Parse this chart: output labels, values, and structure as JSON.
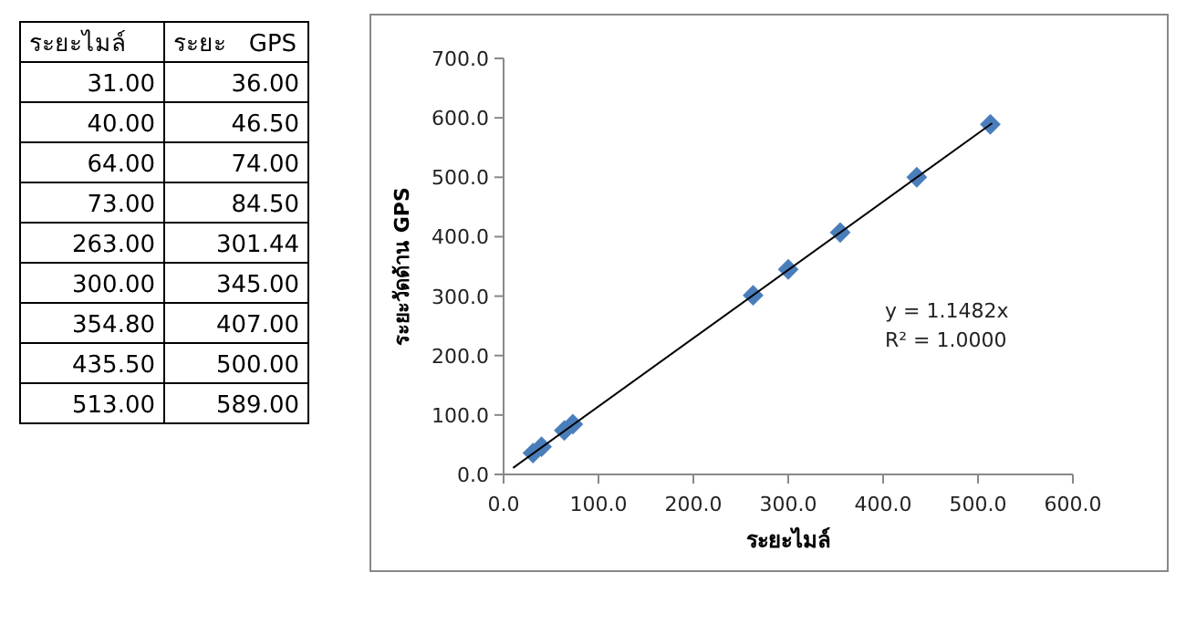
{
  "chart_data": [
    {
      "type": "other",
      "annotations": [
        "ระยะไมล์",
        "ระยะ   GPS",
        "31.00",
        "36.00",
        "40.00",
        "46.50",
        "64.00",
        "74.00",
        "73.00",
        "84.50",
        "263.00",
        "301.44",
        "300.00",
        "345.00",
        "354.80",
        "407.00",
        "435.50",
        "500.00",
        "513.00",
        "589.00"
      ]
    },
    {
      "type": "scatter",
      "xlabel": "ระยะไมล์",
      "ylabel": "ระยะวัดด้าน GPS",
      "xlim": [
        0,
        600
      ],
      "ylim": [
        0,
        700
      ],
      "xticks": [
        {
          "value": 0,
          "label": "0.0"
        },
        {
          "value": 100,
          "label": "100.0"
        },
        {
          "value": 200,
          "label": "200.0"
        },
        {
          "value": 300,
          "label": "300.0"
        },
        {
          "value": 400,
          "label": "400.0"
        },
        {
          "value": 500,
          "label": "500.0"
        },
        {
          "value": 600,
          "label": "600.0"
        }
      ],
      "yticks": [
        {
          "value": 0,
          "label": "0.0"
        },
        {
          "value": 100,
          "label": "100.0"
        },
        {
          "value": 200,
          "label": "200.0"
        },
        {
          "value": 300,
          "label": "300.0"
        },
        {
          "value": 400,
          "label": "400.0"
        },
        {
          "value": 500,
          "label": "500.0"
        },
        {
          "value": 600,
          "label": "600.0"
        },
        {
          "value": 700,
          "label": "700.0"
        }
      ],
      "grid": false,
      "marker": "diamond",
      "annotations": [
        "y = 1.1482x",
        "R² = 1.0000"
      ],
      "series": [
        {
          "type": "scatter",
          "color": "#4a7ebb",
          "x": [
            31,
            40,
            64,
            73,
            263,
            300,
            354.8,
            435.5,
            513
          ],
          "values": [
            36,
            46.5,
            74,
            84.5,
            301.44,
            345,
            407,
            500,
            589
          ]
        },
        {
          "type": "line",
          "color": "#000000",
          "line_style": "solid",
          "marker": "none",
          "x": [
            10,
            515
          ],
          "values": [
            11,
            591
          ]
        }
      ]
    }
  ]
}
